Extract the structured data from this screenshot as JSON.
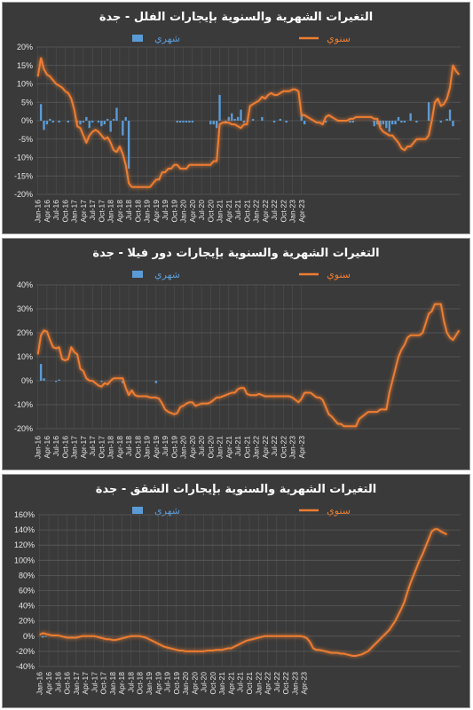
{
  "colors": {
    "monthly": "#5b9bd5",
    "yearly": "#ed7d31",
    "background": "#3a3a3a",
    "grid": "#5a5a5a",
    "text": "#e6e6e6"
  },
  "chart_data": [
    {
      "type": "bar+line",
      "title": "التغيرات الشهرية والسنوية بإيجارات الفلل - جدة",
      "legend": {
        "monthly": "شهري",
        "yearly": "سنوي"
      },
      "yticks": [
        "20%",
        "15%",
        "10%",
        "5%",
        "0%",
        "-5%",
        "-10%",
        "-15%",
        "-20%"
      ],
      "ylim": [
        -20,
        20
      ],
      "grid": true,
      "x_start": "2016-01",
      "x_tick_labels": [
        "Jan-16",
        "Apr-16",
        "Jul-16",
        "Oct-16",
        "Jan-17",
        "Apr-17",
        "Jul-17",
        "Oct-17",
        "Jan-18",
        "Apr-18",
        "Jul-18",
        "Oct-18",
        "Jan-19",
        "Apr-19",
        "Jul-19",
        "Oct-19",
        "Jan-20",
        "Apr-20",
        "Jul-20",
        "Oct-20",
        "Jan-21",
        "Apr-21",
        "Jul-21",
        "Oct-21",
        "Jan-22",
        "Apr-22",
        "Jul-22",
        "Oct-22",
        "Jan-23",
        "Apr-23"
      ],
      "series": [
        {
          "name": "شهري",
          "type": "bar",
          "values": [
            0,
            4.5,
            -2.5,
            -1,
            0.5,
            -0.5,
            0,
            -0.5,
            0,
            0,
            -0.5,
            0,
            0,
            -0.5,
            -1,
            -0.5,
            1,
            -2,
            -0.5,
            0,
            -0.5,
            -1.5,
            -1,
            0.5,
            -3,
            0.5,
            3.5,
            0,
            -4,
            1,
            -13,
            0,
            0,
            0,
            0,
            0,
            0,
            0,
            0,
            0,
            0,
            0,
            0,
            0,
            0,
            0,
            -0.5,
            -0.5,
            -0.5,
            -0.5,
            -0.5,
            -0.5,
            0,
            0,
            0,
            0,
            0,
            -1,
            -1,
            -2,
            7,
            0,
            -0.5,
            1,
            2,
            0.5,
            1,
            3,
            -0.5,
            0,
            0,
            0.5,
            0,
            0,
            1,
            0,
            0,
            0,
            -0.5,
            0,
            0.5,
            0,
            -0.5,
            0,
            0,
            0,
            0,
            2,
            -1,
            0,
            0,
            0,
            0,
            0,
            0,
            -0.5,
            0,
            0,
            0,
            0,
            0,
            0,
            0,
            -0.5,
            -0.5,
            0,
            0,
            0,
            0,
            0,
            0,
            -1.5,
            -1,
            -1.5,
            -1,
            -2,
            -3,
            -1,
            -1,
            1,
            -0.5,
            -0.5,
            0,
            2,
            0,
            -0.5,
            0,
            0,
            0,
            5,
            0,
            0,
            0,
            -0.5,
            0,
            0.5,
            3,
            -1.5
          ]
        },
        {
          "name": "سنوي",
          "type": "line",
          "values": [
            12,
            17,
            14,
            12.5,
            12,
            11,
            10,
            9.5,
            9,
            8,
            7.5,
            6,
            3,
            -1.5,
            -2,
            -4,
            -6,
            -4,
            -3,
            -2.5,
            -3,
            -4,
            -5,
            -4.5,
            -6,
            -8,
            -8.5,
            -7,
            -9,
            -12,
            -17,
            -18,
            -18,
            -18,
            -18,
            -18,
            -18,
            -18,
            -17,
            -16,
            -16,
            -14,
            -14,
            -13,
            -13,
            -12,
            -12,
            -13,
            -13,
            -13,
            -12,
            -12,
            -12,
            -12,
            -12,
            -12,
            -12,
            -12,
            -11,
            -11,
            -1,
            -0.5,
            -0.5,
            -0.5,
            -1,
            -1,
            -1.5,
            -2,
            -1,
            -1,
            4,
            4.5,
            5,
            5.5,
            6.5,
            6,
            7,
            7.5,
            7,
            7,
            7.5,
            8,
            8,
            8,
            8.5,
            8.5,
            8,
            1.5,
            1.5,
            1,
            0.5,
            0,
            -0.5,
            -0.5,
            -1,
            1,
            1.5,
            1,
            0.5,
            0,
            0,
            0,
            0,
            0.5,
            0.5,
            1,
            1,
            1,
            1,
            1,
            1,
            0.5,
            0.5,
            -2,
            -3,
            -3.5,
            -4,
            -4,
            -5,
            -6,
            -7.5,
            -8,
            -7,
            -7,
            -6,
            -5,
            -5,
            -5,
            -5,
            -4,
            0,
            5,
            6,
            4,
            4.5,
            6,
            9,
            15,
            13.5,
            12.5
          ]
        }
      ]
    },
    {
      "type": "bar+line",
      "title": "التغيرات الشهرية والسنوية بإيجارات دور فيلا - جدة",
      "legend": {
        "monthly": "شهري",
        "yearly": "سنوي"
      },
      "yticks": [
        "40%",
        "30%",
        "20%",
        "10%",
        "0%",
        "-10%",
        "-20%"
      ],
      "ylim": [
        -20,
        40
      ],
      "grid": true,
      "x_start": "2016-01",
      "x_tick_labels": [
        "Jan-16",
        "Apr-16",
        "Jul-16",
        "Oct-16",
        "Jan-17",
        "Apr-17",
        "Jul-17",
        "Oct-17",
        "Jan-18",
        "Apr-18",
        "Jul-18",
        "Oct-18",
        "Jan-19",
        "Apr-19",
        "Jul-19",
        "Oct-19",
        "Jan-20",
        "Apr-20",
        "Jul-20",
        "Oct-20",
        "Jan-21",
        "Apr-21",
        "Jul-21",
        "Oct-21",
        "Jan-22",
        "Apr-22",
        "Jul-22",
        "Oct-22",
        "Jan-23",
        "Apr-23"
      ],
      "series": [
        {
          "name": "شهري",
          "type": "bar",
          "values": [
            0,
            7,
            1,
            0,
            0,
            0,
            -0.5,
            0.5,
            0,
            0,
            0,
            0,
            0,
            0,
            0,
            0,
            0,
            0,
            0,
            0,
            0,
            -0.5,
            0,
            0,
            0,
            0,
            0,
            0,
            -1,
            0,
            0,
            0,
            0,
            0,
            0,
            0,
            0,
            0,
            0,
            -1,
            0,
            0,
            0,
            0,
            0,
            0,
            0,
            0,
            0,
            0,
            0,
            0,
            0,
            0,
            0,
            0,
            0,
            0,
            0,
            0,
            0,
            0,
            0,
            0,
            0,
            0,
            0,
            0,
            0,
            0,
            0,
            0,
            0,
            0,
            0,
            0,
            0,
            0,
            0,
            0,
            0,
            0,
            0,
            0,
            0,
            0,
            0,
            0,
            0,
            0,
            0,
            0,
            0,
            0,
            0,
            0,
            0,
            0,
            0,
            0,
            0,
            0,
            0,
            0,
            0,
            0,
            0,
            0,
            0,
            0,
            0,
            0,
            0,
            0,
            0,
            0,
            0,
            0,
            0,
            0,
            0,
            0,
            0,
            0,
            0,
            0,
            0,
            0,
            0,
            0,
            0,
            0,
            0,
            0,
            0,
            0,
            0,
            0,
            0
          ]
        },
        {
          "name": "سنوي",
          "type": "line",
          "values": [
            11,
            19,
            21,
            20.5,
            17,
            14,
            13.5,
            14,
            9,
            8.5,
            9,
            14,
            12,
            11,
            5,
            4,
            1,
            0,
            0,
            -1,
            -2,
            -2.5,
            -1,
            -1.5,
            0,
            1,
            1,
            1,
            1,
            -3,
            -6,
            -4,
            -6,
            -6.5,
            -6.5,
            -6.5,
            -6.5,
            -7,
            -7,
            -7,
            -7.5,
            -9.5,
            -12,
            -13,
            -13.5,
            -14,
            -13.5,
            -11,
            -10.5,
            -9.5,
            -9,
            -9,
            -10.5,
            -10,
            -9.5,
            -9.5,
            -9.5,
            -9,
            -8,
            -7,
            -7,
            -6.5,
            -6,
            -5.5,
            -5,
            -5,
            -3.5,
            -3,
            -3,
            -5.5,
            -6,
            -6,
            -6,
            -5.5,
            -6,
            -6.5,
            -6.5,
            -6.5,
            -6.5,
            -6.5,
            -6.5,
            -6.5,
            -6.5,
            -6.5,
            -7,
            -8,
            -9,
            -7.5,
            -5,
            -5,
            -5,
            -6,
            -7,
            -7,
            -8,
            -11,
            -14,
            -15,
            -16.5,
            -18,
            -18,
            -19,
            -19,
            -19,
            -19,
            -19,
            -16,
            -15,
            -14,
            -13,
            -13,
            -13,
            -13,
            -12,
            -12,
            -12,
            -5,
            0,
            5,
            10,
            13,
            15,
            18,
            19,
            19,
            19,
            19,
            20,
            24,
            28,
            29,
            32,
            32,
            32,
            25,
            20,
            18,
            17,
            19,
            21
          ]
        }
      ]
    },
    {
      "type": "bar+line",
      "title": "التغيرات الشهرية والسنوية بإيجارات الشقق - جدة",
      "legend": {
        "monthly": "شهري",
        "yearly": "سنوي"
      },
      "yticks": [
        "160%",
        "140%",
        "120%",
        "100%",
        "80%",
        "60%",
        "40%",
        "20%",
        "0%",
        "-20%",
        "-40%"
      ],
      "ylim": [
        -40,
        160
      ],
      "grid": true,
      "x_start": "2016-01",
      "x_tick_labels": [
        "Jan-16",
        "Apr-16",
        "Jul-16",
        "Oct-16",
        "Jan-17",
        "Apr-17",
        "Jul-17",
        "Oct-17",
        "Jan-18",
        "Apr-18",
        "Jul-18",
        "Oct-18",
        "Jan-19",
        "Apr-19",
        "Jul-19",
        "Oct-19",
        "Jan-20",
        "Apr-20",
        "Jul-20",
        "Oct-20",
        "Jan-21",
        "Apr-21",
        "Jul-21",
        "Oct-21",
        "Jan-22",
        "Apr-22",
        "Jul-22",
        "Oct-22",
        "Jan-23",
        "Apr-23"
      ],
      "series": [
        {
          "name": "شهري",
          "type": "bar",
          "values": [
            0,
            -2,
            -1,
            0,
            0,
            0,
            0,
            0,
            0,
            0,
            0,
            0,
            0,
            0,
            0,
            0,
            0,
            0,
            0,
            0,
            0,
            0,
            0,
            0,
            0,
            0,
            0,
            0,
            0,
            0,
            0,
            0,
            0,
            0,
            0,
            0,
            0,
            0,
            0,
            0,
            0,
            0,
            0,
            0,
            0,
            0,
            0,
            0,
            0,
            0,
            0,
            0,
            0,
            0,
            0,
            0,
            0,
            0,
            0,
            0,
            0,
            0,
            0,
            0,
            0,
            0,
            0,
            0,
            0,
            0,
            0,
            0,
            0,
            0,
            0,
            0,
            0,
            0,
            0,
            0,
            0,
            0,
            0,
            0,
            0,
            0,
            0,
            0,
            0,
            0,
            0,
            0,
            0,
            0,
            0,
            0,
            0,
            0,
            0,
            0,
            0,
            0,
            0,
            0,
            0,
            0,
            0,
            0,
            0,
            0,
            0,
            0,
            0,
            0,
            0,
            0,
            0,
            0,
            0,
            0,
            0,
            0,
            0,
            0,
            0,
            0,
            0,
            0,
            0,
            0,
            0,
            0,
            0,
            0,
            0,
            0,
            0,
            0,
            0
          ]
        },
        {
          "name": "سنوي",
          "type": "line",
          "values": [
            2,
            4,
            3,
            2,
            1,
            1,
            1,
            0,
            -1,
            -2,
            -2,
            -2,
            -2,
            -1,
            0,
            0,
            0,
            0,
            0,
            -1,
            -2,
            -3,
            -4,
            -4,
            -5,
            -5,
            -4,
            -3,
            -2,
            -1,
            0,
            0,
            0,
            0,
            -1,
            -2,
            -4,
            -6,
            -8,
            -10,
            -12,
            -14,
            -15,
            -16,
            -17,
            -18,
            -19,
            -19,
            -20,
            -20,
            -20,
            -20,
            -20,
            -20,
            -20,
            -19,
            -19,
            -19,
            -18,
            -18,
            -18,
            -17,
            -16,
            -16,
            -14,
            -12,
            -10,
            -8,
            -6,
            -5,
            -4,
            -3,
            -2,
            -1,
            0,
            0,
            0,
            0,
            0,
            0,
            0,
            0,
            0,
            0,
            0,
            0,
            0,
            -1,
            -3,
            -8,
            -16,
            -18,
            -18,
            -19,
            -20,
            -21,
            -22,
            -22,
            -22,
            -23,
            -23,
            -24,
            -25,
            -26,
            -26,
            -25,
            -24,
            -22,
            -20,
            -16,
            -12,
            -8,
            -4,
            0,
            4,
            8,
            14,
            20,
            28,
            36,
            45,
            58,
            70,
            80,
            90,
            100,
            108,
            118,
            128,
            138,
            141,
            141,
            138,
            136,
            134
          ]
        }
      ]
    }
  ]
}
